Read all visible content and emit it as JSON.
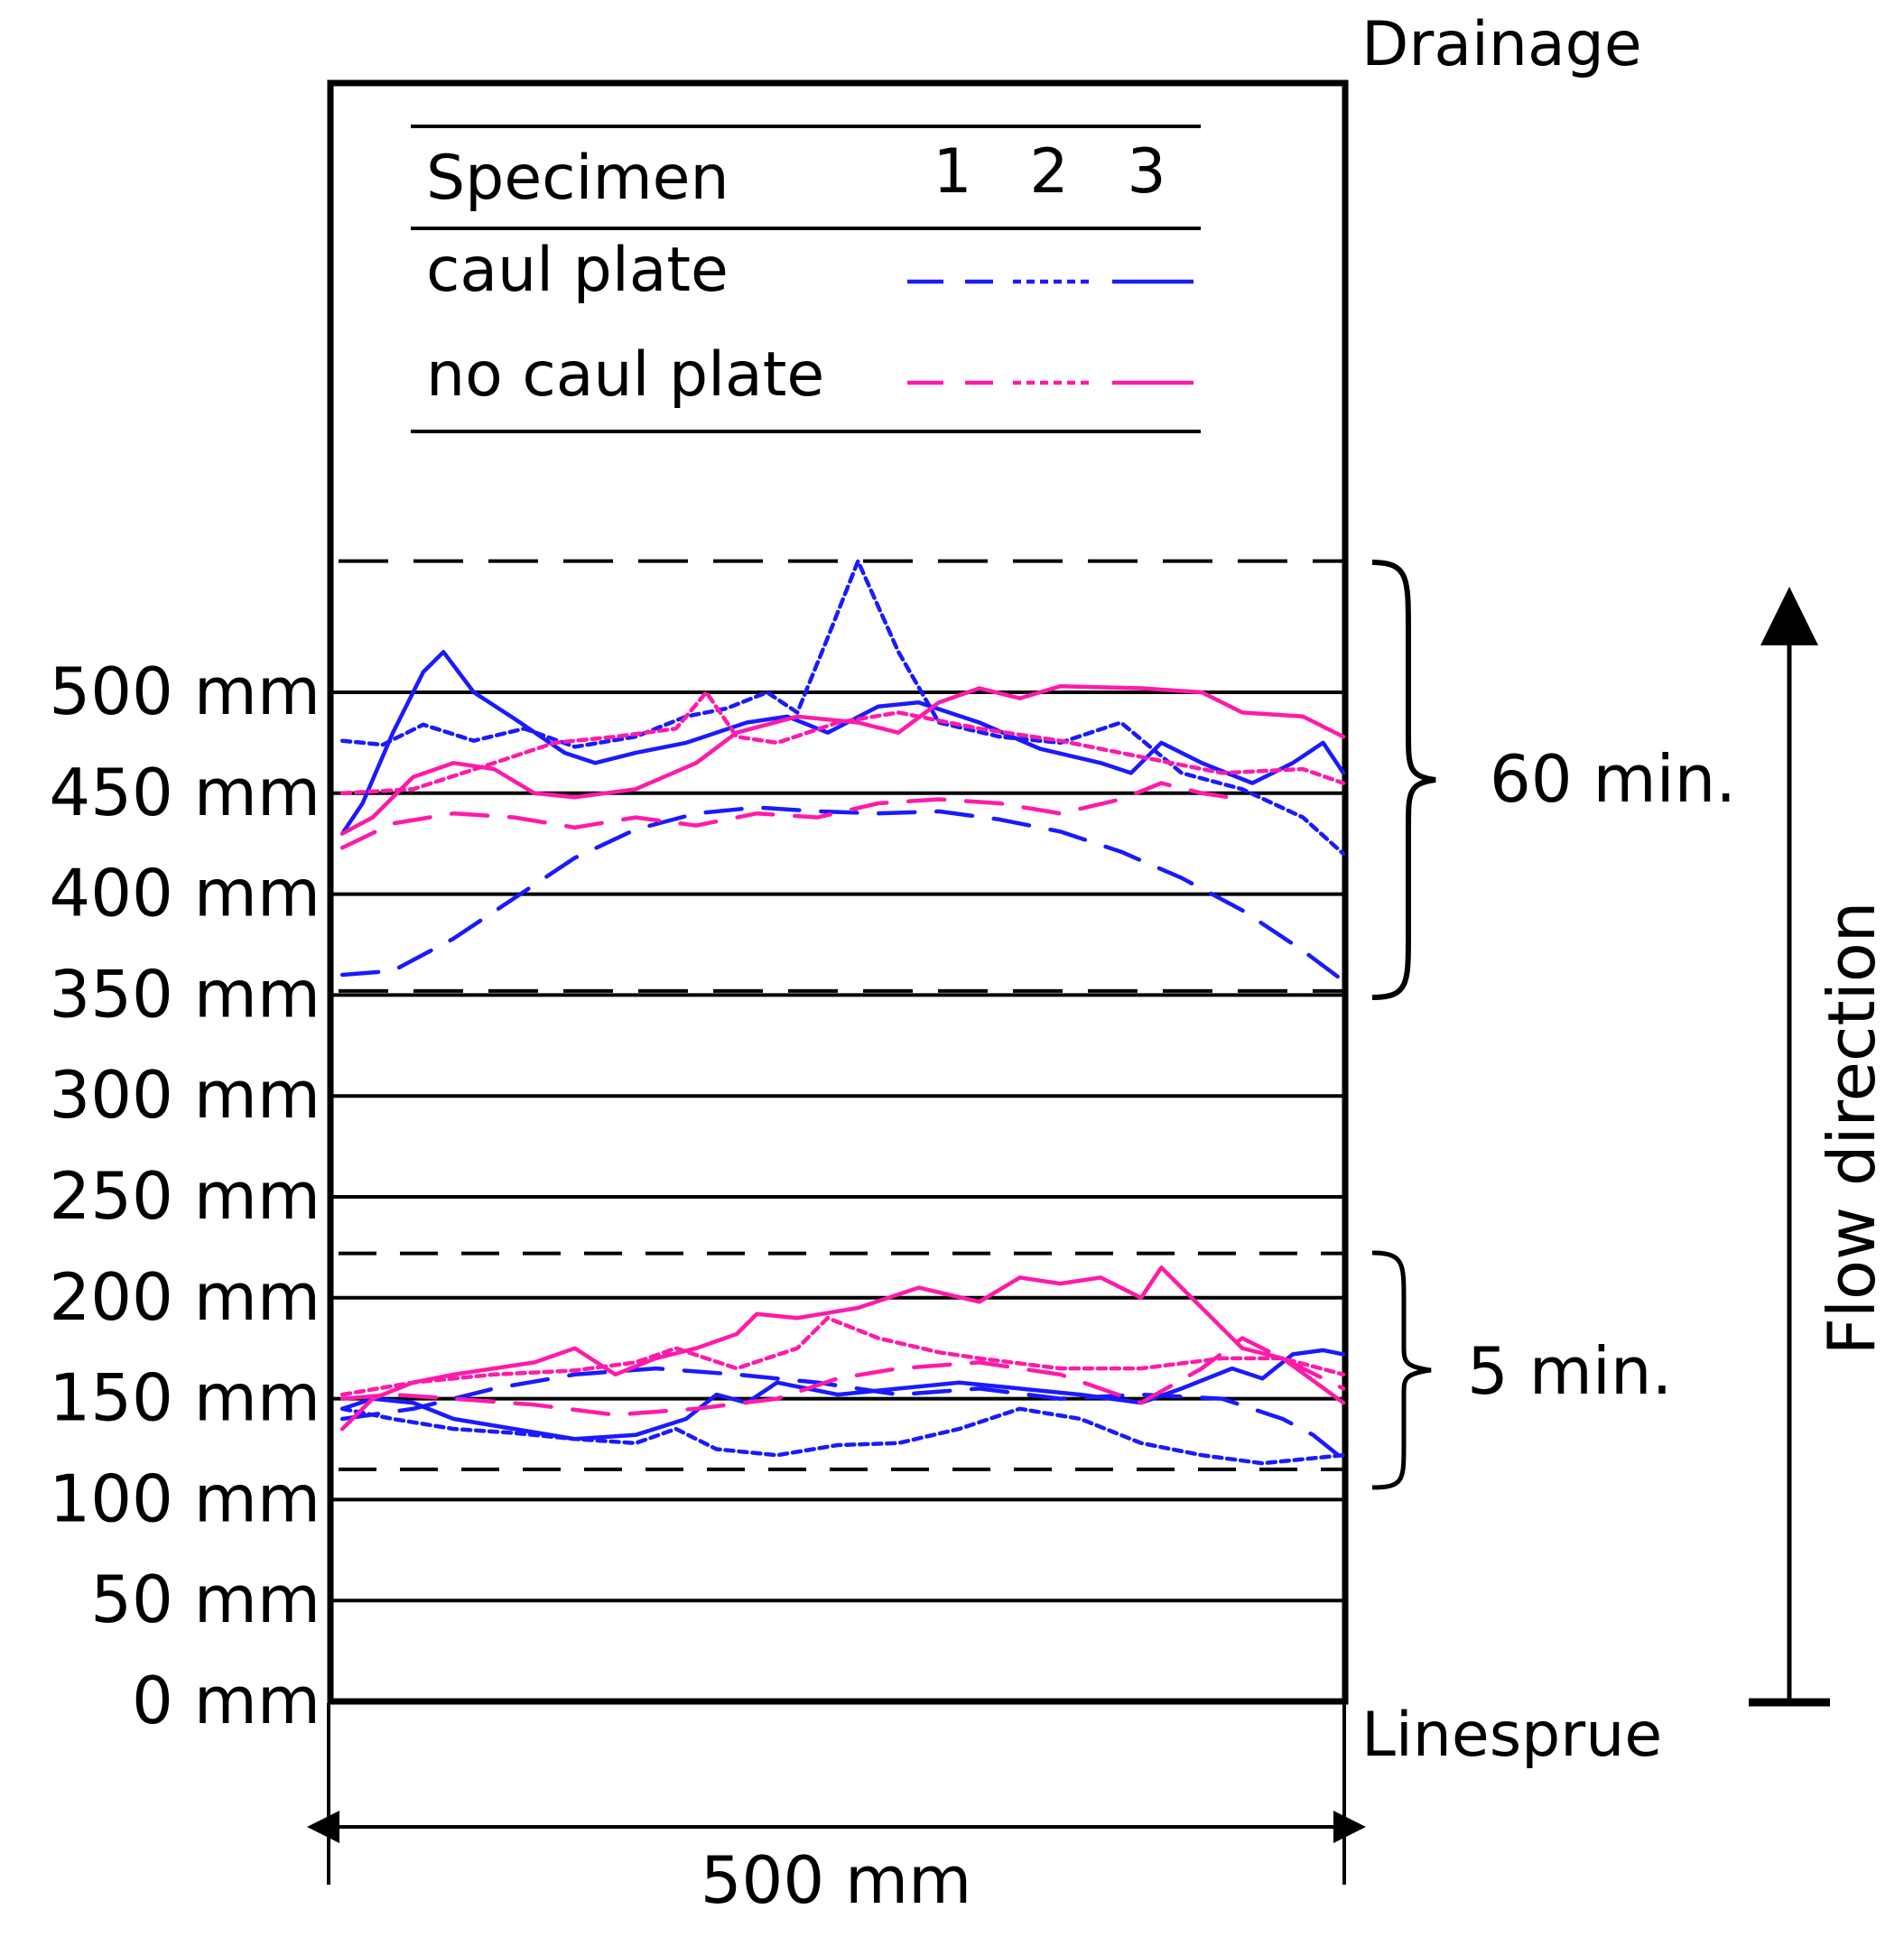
{
  "chart_data": {
    "type": "line",
    "title": "",
    "xlabel": "500 mm",
    "ylabel": "",
    "xlim": [
      0,
      500
    ],
    "ylim": [
      0,
      800
    ],
    "y_ticks": [
      "0 mm",
      "50 mm",
      "100 mm",
      "150 mm",
      "200 mm",
      "250 mm",
      "300 mm",
      "350 mm",
      "400 mm",
      "450 mm",
      "500 mm"
    ],
    "y_tick_values": [
      0,
      50,
      100,
      150,
      200,
      250,
      300,
      350,
      400,
      450,
      500
    ],
    "top_label": "Drainage",
    "bottom_label": "Linesprue",
    "flow_label": "Flow direction",
    "legend": {
      "header": "Specimen",
      "columns": [
        "1",
        "2",
        "3"
      ],
      "rows": [
        {
          "label": "caul plate",
          "color": "#1a1aff"
        },
        {
          "label": "no caul plate",
          "color": "#ff1aa8"
        }
      ]
    },
    "bands": [
      {
        "label": "60 min.",
        "range": [
          352,
          565
        ]
      },
      {
        "label": "5 min.",
        "range": [
          115,
          222
        ]
      }
    ],
    "series": [
      {
        "name": "caul plate 1, 60 min",
        "group": "caul plate",
        "specimen": 1,
        "color": "#1a1aff",
        "dash": "dashed",
        "x": [
          5,
          30,
          60,
          90,
          120,
          150,
          180,
          210,
          240,
          270,
          300,
          330,
          360,
          390,
          420,
          450,
          480,
          500
        ],
        "y": [
          360,
          362,
          378,
          398,
          418,
          432,
          440,
          443,
          441,
          440,
          441,
          437,
          431,
          421,
          408,
          392,
          372,
          357
        ]
      },
      {
        "name": "caul plate 2, 60 min",
        "group": "caul plate",
        "specimen": 2,
        "color": "#1a1aff",
        "dash": "dotted",
        "x": [
          5,
          25,
          45,
          70,
          95,
          120,
          150,
          175,
          195,
          215,
          230,
          245,
          260,
          280,
          300,
          330,
          360,
          390,
          420,
          450,
          480,
          500
        ],
        "y": [
          476,
          474,
          484,
          476,
          482,
          473,
          478,
          488,
          492,
          500,
          490,
          527,
          565,
          520,
          485,
          478,
          475,
          485,
          460,
          452,
          438,
          420
        ]
      },
      {
        "name": "caul plate 3, 60 min",
        "group": "caul plate",
        "specimen": 3,
        "color": "#1a1aff",
        "dash": "solid",
        "x": [
          5,
          15,
          30,
          45,
          55,
          70,
          90,
          115,
          130,
          150,
          175,
          205,
          225,
          245,
          270,
          290,
          320,
          350,
          380,
          395,
          410,
          430,
          455,
          475,
          490,
          500
        ],
        "y": [
          430,
          445,
          480,
          510,
          520,
          500,
          487,
          470,
          465,
          470,
          475,
          485,
          488,
          480,
          493,
          495,
          485,
          472,
          465,
          460,
          475,
          465,
          455,
          465,
          475,
          460
        ]
      },
      {
        "name": "no caul plate 1, 60 min",
        "group": "no caul plate",
        "specimen": 1,
        "color": "#ff1aa8",
        "dash": "dashed",
        "x": [
          5,
          30,
          60,
          90,
          120,
          150,
          180,
          210,
          240,
          270,
          300,
          330,
          360,
          390,
          410,
          430,
          450
        ],
        "y": [
          423,
          435,
          440,
          438,
          433,
          438,
          434,
          440,
          438,
          445,
          447,
          445,
          440,
          447,
          455,
          450,
          447
        ]
      },
      {
        "name": "no caul plate 2, 60 min",
        "group": "no caul plate",
        "specimen": 2,
        "color": "#ff1aa8",
        "dash": "dotted",
        "x": [
          5,
          40,
          80,
          110,
          140,
          170,
          185,
          200,
          220,
          250,
          280,
          320,
          360,
          400,
          440,
          480,
          500
        ],
        "y": [
          450,
          452,
          465,
          475,
          478,
          482,
          500,
          478,
          475,
          485,
          490,
          482,
          476,
          468,
          460,
          462,
          455
        ]
      },
      {
        "name": "no caul plate 3, 60 min",
        "group": "no caul plate",
        "specimen": 3,
        "color": "#ff1aa8",
        "dash": "solid",
        "x": [
          5,
          20,
          40,
          60,
          80,
          100,
          120,
          150,
          180,
          200,
          230,
          260,
          280,
          300,
          320,
          340,
          360,
          400,
          430,
          450,
          480,
          500
        ],
        "y": [
          430,
          438,
          458,
          465,
          462,
          450,
          448,
          452,
          465,
          480,
          488,
          485,
          480,
          495,
          502,
          497,
          503,
          502,
          500,
          490,
          488,
          478
        ]
      },
      {
        "name": "caul plate 1, 5 min",
        "group": "caul plate",
        "specimen": 1,
        "color": "#1a1aff",
        "dash": "dashed",
        "x": [
          5,
          40,
          80,
          120,
          160,
          200,
          240,
          280,
          320,
          360,
          400,
          440,
          470,
          485,
          500
        ],
        "y": [
          140,
          145,
          155,
          162,
          165,
          162,
          158,
          152,
          155,
          150,
          152,
          150,
          140,
          132,
          120
        ]
      },
      {
        "name": "caul plate 2, 5 min",
        "group": "caul plate",
        "specimen": 2,
        "color": "#1a1aff",
        "dash": "dotted",
        "x": [
          5,
          30,
          60,
          90,
          120,
          150,
          170,
          190,
          220,
          250,
          280,
          310,
          340,
          370,
          400,
          430,
          460,
          500
        ],
        "y": [
          145,
          140,
          135,
          133,
          130,
          128,
          135,
          125,
          122,
          127,
          128,
          135,
          145,
          140,
          128,
          122,
          118,
          122
        ]
      },
      {
        "name": "caul plate 3, 5 min",
        "group": "caul plate",
        "specimen": 3,
        "color": "#1a1aff",
        "dash": "solid",
        "x": [
          5,
          20,
          40,
          60,
          90,
          120,
          150,
          175,
          190,
          205,
          220,
          250,
          280,
          310,
          340,
          370,
          400,
          420,
          445,
          460,
          475,
          490,
          500
        ],
        "y": [
          145,
          150,
          148,
          140,
          135,
          130,
          132,
          140,
          152,
          148,
          158,
          152,
          155,
          158,
          155,
          152,
          148,
          155,
          165,
          160,
          172,
          174,
          172
        ]
      },
      {
        "name": "no caul plate 1, 5 min",
        "group": "no caul plate",
        "specimen": 1,
        "color": "#ff1aa8",
        "dash": "dashed",
        "x": [
          5,
          30,
          60,
          100,
          140,
          180,
          220,
          250,
          280,
          320,
          360,
          400,
          430,
          450,
          470,
          490,
          500
        ],
        "y": [
          150,
          152,
          150,
          147,
          142,
          145,
          150,
          160,
          165,
          168,
          162,
          148,
          165,
          180,
          170,
          160,
          155
        ]
      },
      {
        "name": "no caul plate 2, 5 min",
        "group": "no caul plate",
        "specimen": 2,
        "color": "#ff1aa8",
        "dash": "dotted",
        "x": [
          5,
          40,
          80,
          120,
          150,
          170,
          200,
          230,
          245,
          270,
          300,
          320,
          360,
          400,
          440,
          470,
          500
        ],
        "y": [
          152,
          158,
          162,
          164,
          168,
          175,
          165,
          175,
          190,
          180,
          173,
          170,
          165,
          165,
          170,
          170,
          162
        ]
      },
      {
        "name": "no caul plate 3, 5 min",
        "group": "no caul plate",
        "specimen": 3,
        "color": "#ff1aa8",
        "dash": "solid",
        "x": [
          5,
          20,
          40,
          60,
          80,
          100,
          120,
          140,
          160,
          180,
          200,
          210,
          230,
          260,
          290,
          320,
          340,
          360,
          380,
          400,
          410,
          420,
          450,
          470,
          500
        ],
        "y": [
          135,
          150,
          158,
          162,
          165,
          168,
          175,
          162,
          170,
          175,
          182,
          192,
          190,
          195,
          205,
          198,
          210,
          207,
          210,
          200,
          215,
          205,
          175,
          170,
          148
        ]
      }
    ]
  }
}
